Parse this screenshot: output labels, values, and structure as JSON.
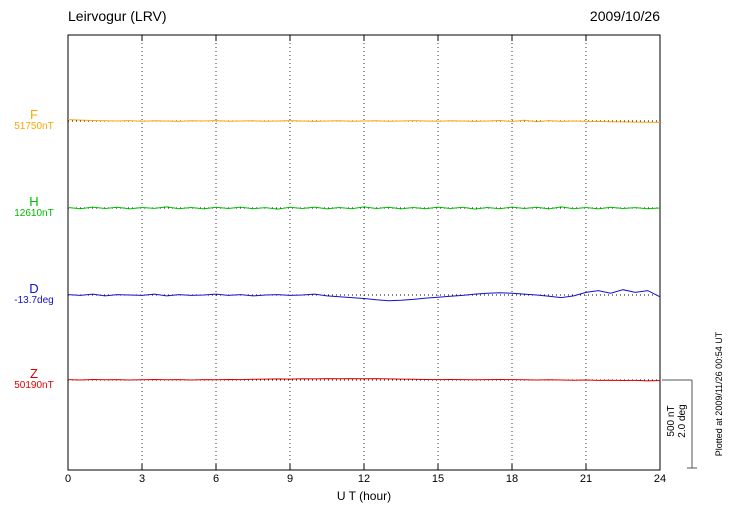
{
  "header": {
    "title": "Leirvogur (LRV)",
    "date": "2009/10/26"
  },
  "footer": {
    "note": "Plotted at 2009/11/26 00:54 UT"
  },
  "scale_bar": {
    "labels": [
      "500 nT",
      "2.0 deg"
    ]
  },
  "chart_data": {
    "type": "line",
    "title": "Leirvogur (LRV) magnetogram 2009/10/26",
    "xlabel": "U T (hour)",
    "x_range": [
      0,
      24
    ],
    "x_ticks": [
      0,
      3,
      6,
      9,
      12,
      15,
      18,
      21,
      24
    ],
    "sample_interval_hours": 0.5,
    "scale": {
      "nT_per_bar": 500,
      "deg_per_bar": 2.0
    },
    "grid": "dotted-vertical-at-ticks",
    "series": [
      {
        "name": "F",
        "baseline_label": "51750nT",
        "unit": "nT",
        "color": "#FFA500",
        "offsets": [
          8,
          5,
          3,
          1,
          0,
          2,
          -1,
          1,
          0,
          -2,
          1,
          0,
          2,
          -1,
          0,
          1,
          -1,
          0,
          2,
          0,
          -2,
          0,
          1,
          -1,
          0,
          1,
          -1,
          0,
          2,
          0,
          -1,
          1,
          0,
          -2,
          0,
          3,
          -3,
          4,
          -4,
          2,
          -2,
          0,
          -2,
          -3,
          -4,
          -5,
          -6,
          -7,
          -8
        ]
      },
      {
        "name": "H",
        "baseline_label": "12610nT",
        "unit": "nT",
        "color": "#00BB00",
        "offsets": [
          3,
          -4,
          5,
          -3,
          4,
          -5,
          3,
          -2,
          6,
          -4,
          3,
          -5,
          4,
          -3,
          5,
          -4,
          2,
          -6,
          4,
          -3,
          5,
          -5,
          3,
          -4,
          6,
          -3,
          4,
          -5,
          3,
          -4,
          5,
          -3,
          4,
          -6,
          3,
          -4,
          5,
          -3,
          4,
          -5,
          6,
          -4,
          3,
          -5,
          4,
          -3,
          2,
          -4,
          0
        ]
      },
      {
        "name": "D",
        "baseline_label": "-13.7deg",
        "unit": "deg",
        "color": "#1111CC",
        "offsets": [
          0.01,
          -0.01,
          0.02,
          -0.02,
          0.01,
          0,
          -0.01,
          0.02,
          -0.02,
          0.01,
          -0.01,
          0,
          0.02,
          -0.01,
          0.01,
          -0.02,
          0,
          0.01,
          -0.01,
          0,
          0.02,
          -0.02,
          -0.04,
          -0.06,
          -0.08,
          -0.11,
          -0.13,
          -0.12,
          -0.1,
          -0.07,
          -0.05,
          -0.03,
          -0.01,
          0.02,
          0.04,
          0.05,
          0.04,
          0.02,
          0,
          -0.03,
          -0.06,
          -0.02,
          0.06,
          0.1,
          0.04,
          0.12,
          0.06,
          0.1,
          -0.04
        ]
      },
      {
        "name": "Z",
        "baseline_label": "50190nT",
        "unit": "nT",
        "color": "#DD0000",
        "offsets": [
          2,
          0,
          3,
          1,
          2,
          0,
          1,
          3,
          1,
          2,
          0,
          2,
          1,
          3,
          2,
          4,
          5,
          6,
          5,
          7,
          6,
          8,
          7,
          8,
          7,
          8,
          6,
          5,
          4,
          3,
          2,
          3,
          2,
          1,
          2,
          3,
          2,
          1,
          0,
          1,
          0,
          -1,
          0,
          -2,
          -1,
          -3,
          -2,
          -5,
          -3
        ]
      }
    ]
  }
}
